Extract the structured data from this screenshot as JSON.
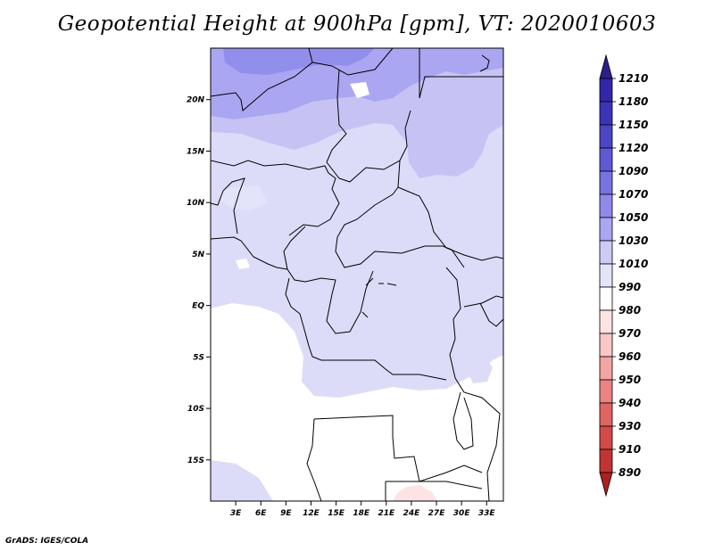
{
  "title": "Geopotential Height at 900hPa [gpm], VT: 2020010603",
  "credit": "GrADS: IGES/COLA",
  "map": {
    "lat_labels": [
      "20N",
      "15N",
      "10N",
      "5N",
      "EQ",
      "5S",
      "10S",
      "15S"
    ],
    "lat_values": [
      20,
      15,
      10,
      5,
      0,
      -5,
      -10,
      -15
    ],
    "lon_labels": [
      "3E",
      "6E",
      "9E",
      "12E",
      "15E",
      "18E",
      "21E",
      "24E",
      "27E",
      "30E",
      "33E"
    ],
    "lon_values": [
      3,
      6,
      9,
      12,
      15,
      18,
      21,
      24,
      27,
      30,
      33
    ],
    "lon_range": [
      0,
      35
    ],
    "lat_range": [
      -19,
      25
    ]
  },
  "colorbar": {
    "levels": [
      "1210",
      "1180",
      "1150",
      "1120",
      "1090",
      "1070",
      "1050",
      "1030",
      "1010",
      "990",
      "980",
      "970",
      "960",
      "950",
      "940",
      "930",
      "910",
      "890"
    ],
    "colors": [
      "#2c1f8a",
      "#3326a8",
      "#3b34b8",
      "#4a46c6",
      "#5e5ad6",
      "#7673e2",
      "#9089ec",
      "#aba6f2",
      "#cdcbf6",
      "#e3e3fa",
      "#ffffff",
      "#fde3e3",
      "#fbc6c6",
      "#f4a4a4",
      "#ec8282",
      "#e06464",
      "#d44a4a",
      "#c23434",
      "#ac2020"
    ]
  },
  "field_colors": {
    "band_1010_1030": "#dcdcf9",
    "band_1030_1050": "#c6c3f4",
    "band_1050_1070": "#aaa6f1",
    "band_1070_1090": "#928eec",
    "below_1010": "#ffffff",
    "low_990": "#fde3e3"
  }
}
